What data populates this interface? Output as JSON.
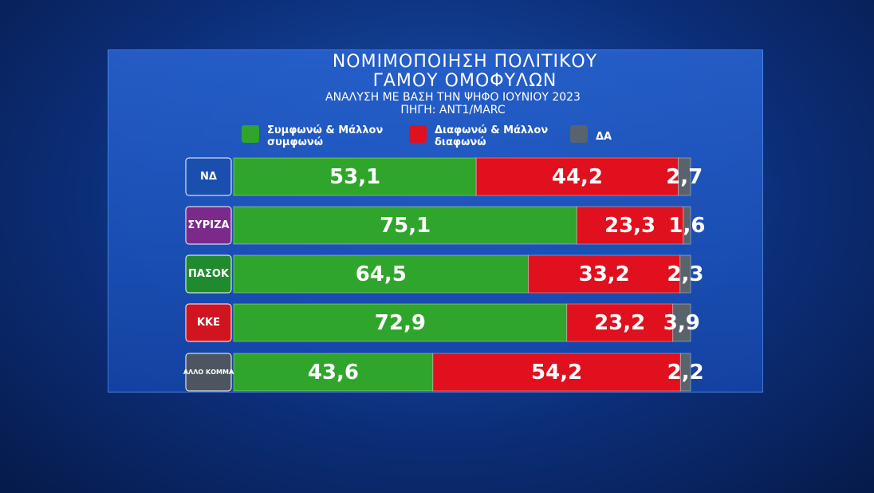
{
  "chart_data": {
    "type": "stacked-bar",
    "title": "ΝΟΜΙΜΟΠΟΙΗΣΗ ΠΟΛΙΤΙΚΟΥ ΓΑΜΟΥ ΟΜΟΦΥΛΩΝ",
    "subtitle": "ΑΝΑΛΥΣΗ ΜΕ ΒΑΣΗ ΤΗΝ ΨΗΦΟ ΙΟΥΝΙΟΥ 2023",
    "source": "ΠΗΓΗ: ANT1/MARC",
    "categories": [
      "ΝΔ",
      "ΣΥΡΙΖΑ",
      "ΠΑΣΟΚ",
      "ΚΚΕ",
      "ΑΛΛΟ ΚΟΜΜΑ"
    ],
    "xlim": [
      0,
      100
    ],
    "series": [
      {
        "name": "Συμφωνώ & Μάλλον συμφωνώ",
        "color": "#2fa52c",
        "values": [
          53.1,
          75.1,
          64.5,
          72.9,
          43.6
        ],
        "value_labels": [
          "53,1",
          "75,1",
          "64,5",
          "72,9",
          "43,6"
        ]
      },
      {
        "name": "Διαφωνώ & Μάλλον διαφωνώ",
        "color": "#e0101e",
        "values": [
          44.2,
          23.3,
          33.2,
          23.2,
          54.2
        ],
        "value_labels": [
          "44,2",
          "23,3",
          "33,2",
          "23,2",
          "54,2"
        ]
      },
      {
        "name": "ΔΑ",
        "color": "#59636e",
        "values": [
          2.7,
          1.6,
          2.3,
          3.9,
          2.2
        ],
        "value_labels": [
          "2,7",
          "1,6",
          "2,3",
          "3,9",
          "2,2"
        ]
      }
    ]
  }
}
